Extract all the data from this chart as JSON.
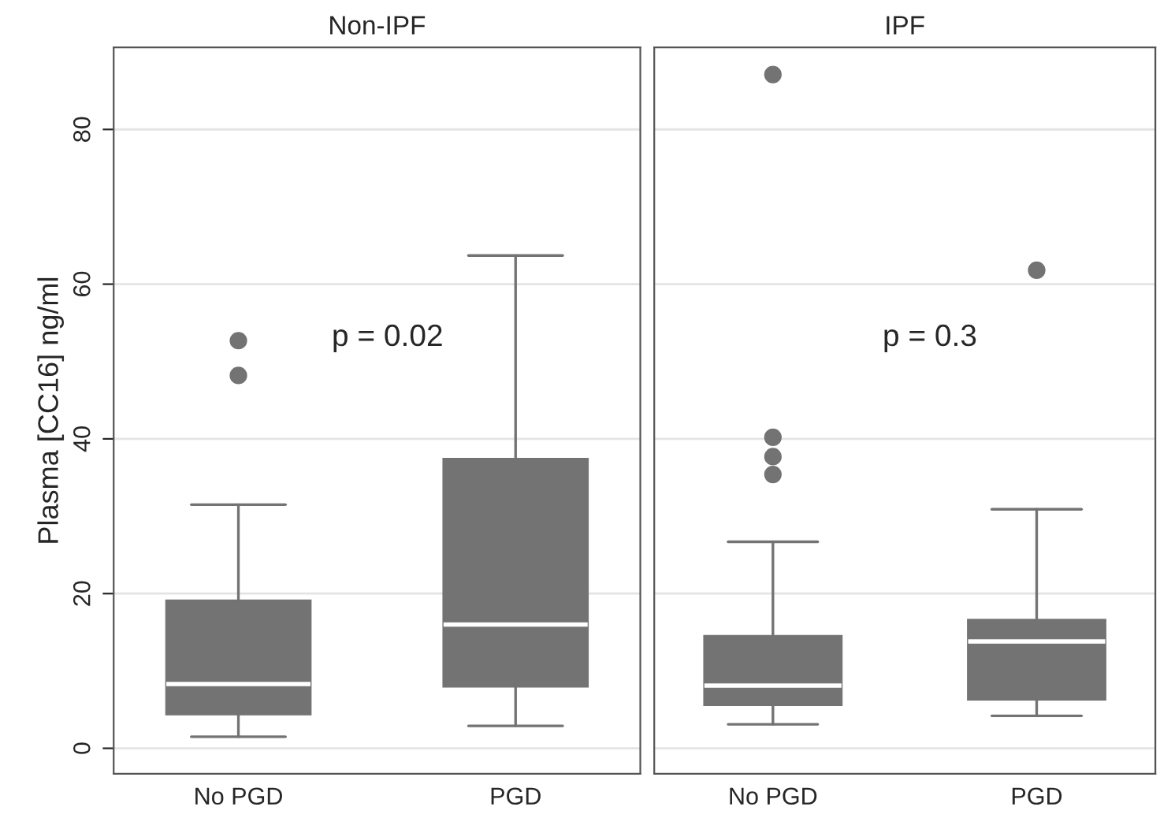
{
  "chart_data": [
    {
      "type": "box",
      "title": "Non-IPF",
      "ylabel": "Plasma [CC16] ng/ml",
      "categories": [
        "No PGD",
        "PGD"
      ],
      "color": "#737373",
      "boxes": [
        {
          "low": 1.5,
          "q1": 4.4,
          "median": 8.3,
          "q3": 19.1,
          "high": 31.5,
          "outliers": [
            48.2,
            52.7
          ]
        },
        {
          "low": 2.9,
          "q1": 8.0,
          "median": 16.0,
          "q3": 37.4,
          "high": 63.7
        }
      ],
      "ylim": [
        -3.3,
        90.6
      ],
      "yticks": [
        0,
        20,
        40,
        60,
        80
      ],
      "grid": "y",
      "annotations": [
        "p = 0.02"
      ]
    },
    {
      "type": "box",
      "title": "IPF",
      "categories": [
        "No PGD",
        "PGD"
      ],
      "color": "#737373",
      "boxes": [
        {
          "low": 3.1,
          "q1": 5.6,
          "median": 8.1,
          "q3": 14.5,
          "high": 26.7,
          "outliers": [
            35.4,
            37.7,
            40.2,
            87.1
          ]
        },
        {
          "low": 4.2,
          "q1": 6.3,
          "median": 13.8,
          "q3": 16.6,
          "high": 30.9,
          "outliers": [
            61.8
          ]
        }
      ],
      "ylim": [
        -3.3,
        90.6
      ],
      "yticks": [
        0,
        20,
        40,
        60,
        80
      ],
      "grid": "y",
      "tick_labels": "x",
      "annotations": [
        "p = 0.3"
      ]
    }
  ]
}
